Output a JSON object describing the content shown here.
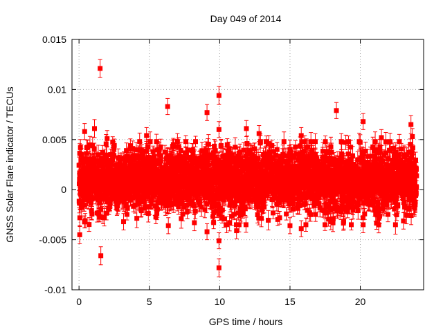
{
  "chart_data": {
    "type": "scatter",
    "title": "Day 049 of 2014",
    "xlabel": "GPS time / hours",
    "ylabel": "GNSS Solar Flare indicator / TECUs",
    "xlim": [
      -0.5,
      24.5
    ],
    "ylim": [
      -0.01,
      0.015
    ],
    "grid": true,
    "xticks": [
      0,
      5,
      10,
      15,
      20
    ],
    "xtick_labels": [
      "0",
      "5",
      "10",
      "15",
      "20"
    ],
    "yticks": [
      -0.01,
      -0.005,
      0,
      0.005,
      0.01,
      0.015
    ],
    "ytick_labels": [
      "-0.01",
      "-0.005",
      "0",
      "0.005",
      "0.01",
      "0.015"
    ],
    "series": [
      {
        "name": "solar flare indicator",
        "color": "#ff0000",
        "marker": "square",
        "error_bars": true,
        "bulk": {
          "x_start": 0,
          "x_end": 24,
          "count": 2880,
          "mean": 0.0009,
          "spread": 0.0016,
          "error": 0.00075
        },
        "points": [
          {
            "x": 0.05,
            "y": -0.0045,
            "err": 0.0009
          },
          {
            "x": 0.1,
            "y": 0.0042,
            "err": 0.0008
          },
          {
            "x": 0.4,
            "y": 0.0058,
            "err": 0.0008
          },
          {
            "x": 1.1,
            "y": 0.0061,
            "err": 0.0009
          },
          {
            "x": 1.5,
            "y": 0.0121,
            "err": 0.0009
          },
          {
            "x": 1.55,
            "y": -0.0066,
            "err": 0.0009
          },
          {
            "x": 2.0,
            "y": 0.0051,
            "err": 0.0008
          },
          {
            "x": 4.8,
            "y": 0.0054,
            "err": 0.0008
          },
          {
            "x": 6.3,
            "y": 0.0083,
            "err": 0.0008
          },
          {
            "x": 6.35,
            "y": -0.0036,
            "err": 0.0008
          },
          {
            "x": 7.0,
            "y": 0.0048,
            "err": 0.0008
          },
          {
            "x": 8.2,
            "y": -0.0033,
            "err": 0.0008
          },
          {
            "x": 9.1,
            "y": 0.0077,
            "err": 0.0008
          },
          {
            "x": 9.1,
            "y": -0.0042,
            "err": 0.0008
          },
          {
            "x": 9.95,
            "y": 0.0094,
            "err": 0.0009
          },
          {
            "x": 9.95,
            "y": 0.006,
            "err": 0.0008
          },
          {
            "x": 9.95,
            "y": -0.0051,
            "err": 0.0008
          },
          {
            "x": 9.95,
            "y": -0.0078,
            "err": 0.0009
          },
          {
            "x": 10.5,
            "y": -0.0035,
            "err": 0.0008
          },
          {
            "x": 11.2,
            "y": -0.0041,
            "err": 0.0008
          },
          {
            "x": 11.9,
            "y": 0.0061,
            "err": 0.0008
          },
          {
            "x": 12.8,
            "y": 0.0056,
            "err": 0.0008
          },
          {
            "x": 13.5,
            "y": 0.0046,
            "err": 0.0008
          },
          {
            "x": 15.0,
            "y": -0.0036,
            "err": 0.0008
          },
          {
            "x": 15.8,
            "y": 0.0054,
            "err": 0.0008
          },
          {
            "x": 15.8,
            "y": -0.0039,
            "err": 0.0008
          },
          {
            "x": 17.9,
            "y": -0.0032,
            "err": 0.0008
          },
          {
            "x": 18.3,
            "y": 0.0079,
            "err": 0.0008
          },
          {
            "x": 20.2,
            "y": 0.0068,
            "err": 0.0008
          },
          {
            "x": 20.2,
            "y": -0.0035,
            "err": 0.0008
          },
          {
            "x": 21.5,
            "y": 0.0052,
            "err": 0.0008
          },
          {
            "x": 23.6,
            "y": 0.0065,
            "err": 0.0009
          },
          {
            "x": 23.7,
            "y": 0.0053,
            "err": 0.0008
          },
          {
            "x": 23.9,
            "y": -0.0015,
            "err": 0.0008
          }
        ]
      }
    ]
  }
}
